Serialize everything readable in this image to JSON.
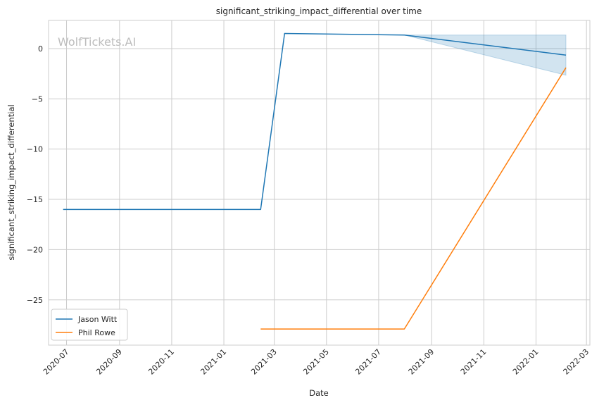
{
  "watermark": "WolfTickets.AI",
  "chart_data": {
    "type": "line",
    "title": "significant_striking_impact_differential over time",
    "xlabel": "Date",
    "ylabel": "significant_striking_impact_differential",
    "x_axis_type": "date",
    "xlim": [
      "2020-06-10",
      "2022-03-05"
    ],
    "ylim": [
      -29.5,
      2.8
    ],
    "x_ticks": [
      "2020-07-01",
      "2020-09-01",
      "2020-11-01",
      "2021-01-01",
      "2021-03-01",
      "2021-05-01",
      "2021-07-01",
      "2021-09-01",
      "2021-11-01",
      "2022-01-01",
      "2022-03-01"
    ],
    "x_tick_labels": [
      "2020-07",
      "2020-09",
      "2020-11",
      "2021-01",
      "2021-03",
      "2021-05",
      "2021-07",
      "2021-09",
      "2021-11",
      "2022-01",
      "2022-03"
    ],
    "y_ticks": [
      0,
      -5,
      -10,
      -15,
      -20,
      -25
    ],
    "y_tick_labels": [
      "0",
      "−5",
      "−10",
      "−15",
      "−20",
      "−25"
    ],
    "grid": true,
    "legend_position": "lower-left",
    "series": [
      {
        "name": "Jason Witt",
        "color": "#1f77b4",
        "x": [
          "2020-06-27",
          "2021-02-13",
          "2021-03-13",
          "2021-07-31",
          "2022-02-05"
        ],
        "y": [
          -16,
          -16,
          1.5,
          1.35,
          -0.65
        ],
        "band": {
          "x": [
            "2021-07-31",
            "2022-02-05"
          ],
          "upper": [
            1.35,
            1.35
          ],
          "lower": [
            1.35,
            -2.65
          ]
        }
      },
      {
        "name": "Phil Rowe",
        "color": "#ff7f0e",
        "x": [
          "2021-02-13",
          "2021-07-31",
          "2022-02-05"
        ],
        "y": [
          -27.9,
          -27.9,
          -1.9
        ]
      }
    ]
  }
}
